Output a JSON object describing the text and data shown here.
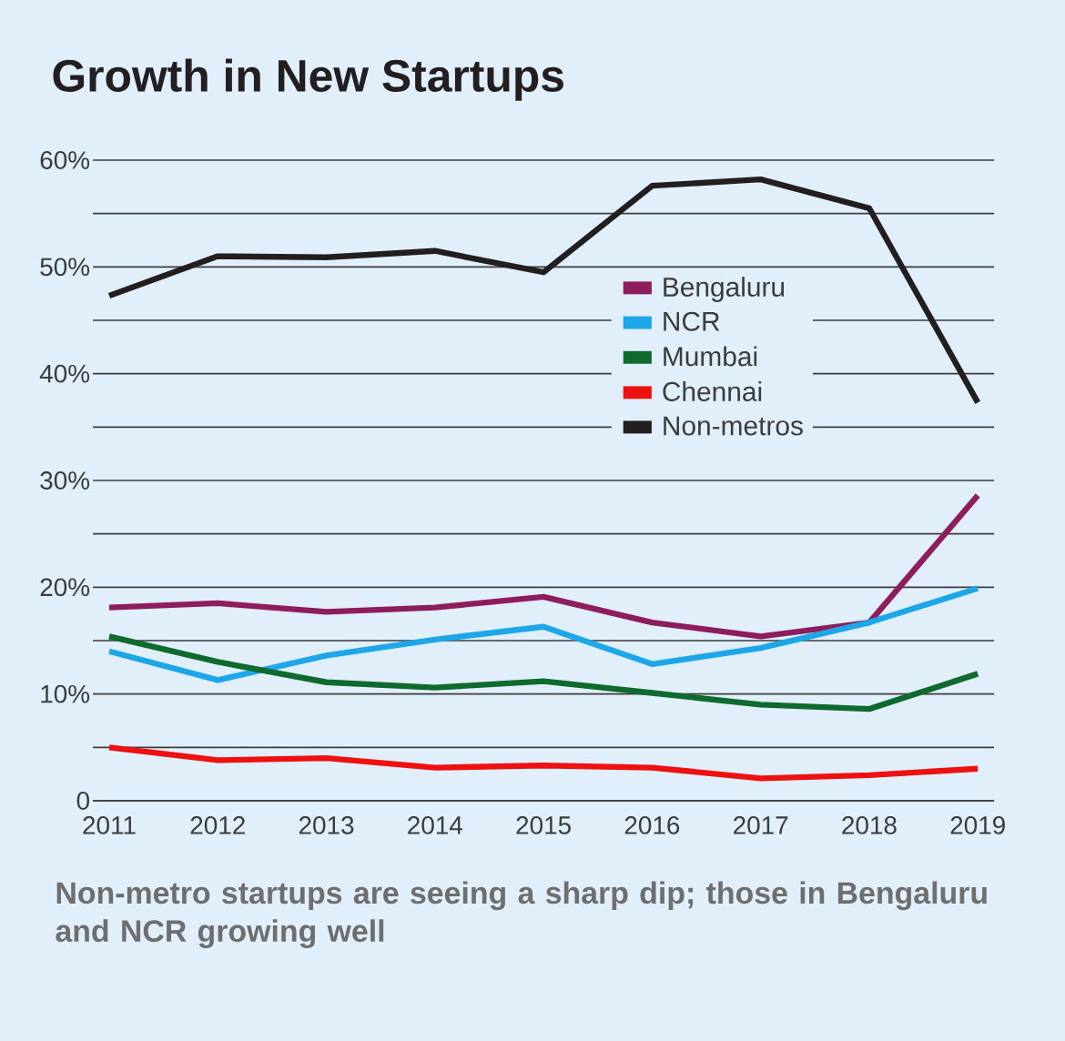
{
  "chart_data": {
    "type": "line",
    "title": "Growth in New Startups",
    "categories": [
      "2011",
      "2012",
      "2013",
      "2014",
      "2015",
      "2016",
      "2017",
      "2018",
      "2019"
    ],
    "series": [
      {
        "name": "Bengaluru",
        "color": "#8e1d5e",
        "values": [
          18.1,
          18.5,
          17.7,
          18.1,
          19.1,
          16.7,
          15.4,
          16.7,
          28.6
        ]
      },
      {
        "name": "NCR",
        "color": "#1ea7e8",
        "values": [
          14.0,
          11.3,
          13.6,
          15.1,
          16.3,
          12.8,
          14.3,
          16.7,
          19.9
        ]
      },
      {
        "name": "Mumbai",
        "color": "#0f6a2e",
        "values": [
          15.4,
          13.0,
          11.1,
          10.6,
          11.2,
          10.1,
          9.0,
          8.6,
          11.9
        ]
      },
      {
        "name": "Chennai",
        "color": "#ee1111",
        "values": [
          5.0,
          3.8,
          4.0,
          3.1,
          3.3,
          3.1,
          2.1,
          2.4,
          3.0
        ]
      },
      {
        "name": "Non-metros",
        "color": "#231f20",
        "values": [
          47.3,
          51.0,
          50.9,
          51.5,
          49.5,
          57.6,
          58.2,
          55.5,
          37.3
        ]
      }
    ],
    "ylim": [
      0,
      60
    ],
    "yticks": [
      {
        "value": 0,
        "label": "0"
      },
      {
        "value": 5,
        "label": null
      },
      {
        "value": 10,
        "label": "10%"
      },
      {
        "value": 15,
        "label": null
      },
      {
        "value": 20,
        "label": "20%"
      },
      {
        "value": 25,
        "label": null
      },
      {
        "value": 30,
        "label": "30%"
      },
      {
        "value": 35,
        "label": null
      },
      {
        "value": 40,
        "label": "40%"
      },
      {
        "value": 45,
        "label": null
      },
      {
        "value": 50,
        "label": "50%"
      },
      {
        "value": 55,
        "label": null
      },
      {
        "value": 60,
        "label": "60%"
      }
    ],
    "grid": "y",
    "legend": "right",
    "line_style": "solid",
    "annotations": [
      "Non-metro startups are seeing a sharp dip; those in Bengaluru and NCR growing well"
    ]
  }
}
